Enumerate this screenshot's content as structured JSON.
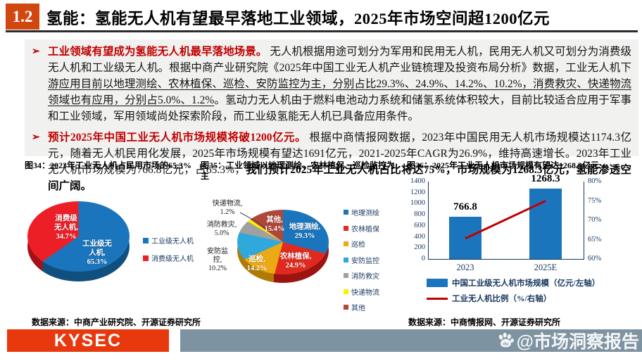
{
  "header": {
    "section_number": "1.2",
    "title": "氢能：氢能无人机有望最早落地工业领域，2025年市场空间超1200亿元"
  },
  "bullets": [
    {
      "marker": "➢",
      "lead": "工业领域有望成为氢能无人机最早落地场景。",
      "text_before_underline": "无人机根据用途可划分为军用和民用无人机，民用无人机又可划分为消费级无人机和工业级无人机。根据中商产业研究院《2025年中国工业无人机产业链梳理及投资布局分析》数据，工业无人机下",
      "text_underlined": "游应用目前以地理测绘、农林植保、巡检、安防监控为主，分别占比29.3%、24.9%、14.2%、10.2%，消费救灾、快递物流领域也有应用，分别占5.0%、1.2%",
      "text_after_underline": "。氢动力无人机由于燃料电池动力系统和储氢系统体积较大，目前比较适合应用于军事和工业领域，军用领域尚处探索阶段，而工业级氢能无人机已具备应用条件。"
    },
    {
      "marker": "➢",
      "lead": "预计2025年中国工业无人机市场规模将破1200亿元。",
      "text": "根据中商情报网数据，2023年中国民用无人机市场规模达1174.3亿元，随着无人机民用化发展，2025年市场规模有望达1691亿元，2021-2025年CAGR为26.9%，维持高速增长。2023年工业无人机市场规模为766.8亿元，占65.3%，",
      "emphasis": "我们预计2025年工业无人机占比将达75%，市场规模为1268.3亿元，氢能渗透空间广阔。"
    }
  ],
  "figures": {
    "fig34": {
      "slice_labels": {
        "industrial": "工业级无\n人机,\n65.3%",
        "consumer": "消费级\n无人机,\n34.7%"
      },
      "source": "数据来源：中商产业研究院、开源证券研究所"
    },
    "fig35": {
      "inside_labels": {
        "geo": "地理测绘,\n29.3%",
        "agri": "农林植保,\n24.9%",
        "inspection": "巡检,\n14.2%",
        "other": "其他,\n15.4%"
      },
      "callout_labels": {
        "express": "快递物流,\n1.2%",
        "fire": "消防救灾,\n5.0%",
        "security": "安防监\n控,\n10.2%"
      }
    },
    "fig36": {
      "source": "数据来源：中商情报网、开源证券研究所"
    }
  },
  "chart_data": [
    {
      "id": "fig34",
      "type": "pie",
      "title": "图34：2023年工业无人机占民用市场的65.3%",
      "slices": [
        {
          "label": "工业级无人机",
          "value": 65.3,
          "color": "#1B75BC"
        },
        {
          "label": "消费级无人机",
          "value": 34.7,
          "color": "#EC1F27"
        }
      ],
      "legend_position": "right",
      "style": "3d"
    },
    {
      "id": "fig35",
      "type": "pie",
      "title": "图35：工业领域以地理测绘、农林植保、巡检监控为主",
      "slices": [
        {
          "label": "地理测绘",
          "value": 29.3,
          "color": "#1B75BC"
        },
        {
          "label": "农林植保",
          "value": 24.9,
          "color": "#E02A20"
        },
        {
          "label": "巡检",
          "value": 14.2,
          "color": "#EDA913"
        },
        {
          "label": "安防监控",
          "value": 10.2,
          "color": "#2FA8DC"
        },
        {
          "label": "消防救灾",
          "value": 5.0,
          "color": "#A0A0A0"
        },
        {
          "label": "快递物流",
          "value": 1.2,
          "color": "#FFF100"
        },
        {
          "label": "其他",
          "value": 15.4,
          "color": "#B0473A"
        }
      ],
      "legend_position": "right",
      "style": "3d"
    },
    {
      "id": "fig36",
      "type": "bar",
      "title": "图36：2025年工业无人机市场规模有望达1268.3亿元",
      "categories": [
        "2023",
        "2025E"
      ],
      "series": [
        {
          "name": "中国工业级无人机市场规模（亿元/左轴）",
          "type": "bar",
          "axis": "left",
          "values": [
            766.8,
            1268.3
          ],
          "color": "#1B75BC"
        },
        {
          "name": "工业无人机比例（%/右轴）",
          "type": "line",
          "axis": "right",
          "values": [
            65.3,
            75
          ],
          "color": "#C00000"
        }
      ],
      "left_axis": {
        "min": 0,
        "max": 1400,
        "step": 200,
        "ticks": [
          "1400",
          "1200",
          "1000",
          "800",
          "600",
          "400",
          "200",
          "0"
        ]
      },
      "right_axis": {
        "min": 60,
        "max": 80,
        "step": 5,
        "ticks": [
          "80%",
          "75%",
          "70%",
          "65%",
          "60%"
        ]
      },
      "legend_position": "bottom",
      "grid": false
    }
  ],
  "footer": {
    "brand": "KYSEC",
    "watermark": "@市场洞察报告",
    "watermark_icon": "baidu-paw-icon"
  },
  "colors": {
    "accent_red": "#C00000",
    "badge_orange": "#D0470F",
    "brand_red": "#E8390E",
    "footer_gray": "#7E93A2",
    "axis_navy": "#17375E"
  }
}
